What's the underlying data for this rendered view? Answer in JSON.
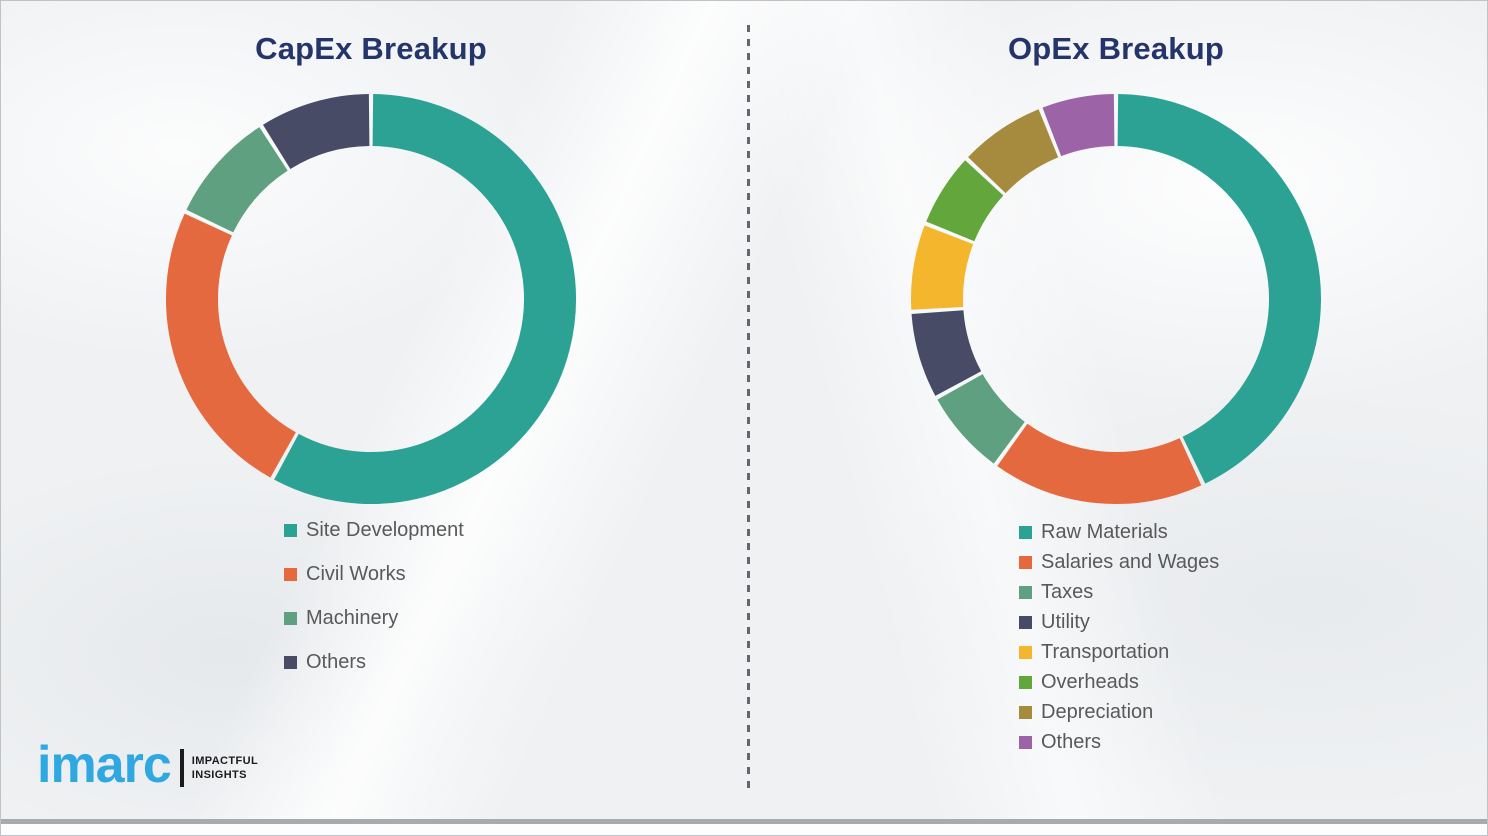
{
  "branding": {
    "logo_text": "imarc",
    "tagline_line1": "IMPACTFUL",
    "tagline_line2": "INSIGHTS",
    "logo_color": "#2FA8E1"
  },
  "colors": {
    "title_navy": "#24356B",
    "legend_text": "#595959",
    "divider_gray": "#63666c"
  },
  "chart_data": [
    {
      "type": "pie",
      "donut": true,
      "hole_radius_ratio": 0.75,
      "title": "CapEx Breakup",
      "categories": [
        "Site Development",
        "Civil Works",
        "Machinery",
        "Others"
      ],
      "values": [
        58,
        24,
        9,
        9
      ],
      "units": "percent",
      "colors": [
        "#2BA294",
        "#E5693F",
        "#5FA080",
        "#474B66"
      ],
      "legend_position": "bottom-left",
      "start_angle_deg": 0,
      "direction": "clockwise"
    },
    {
      "type": "pie",
      "donut": true,
      "hole_radius_ratio": 0.75,
      "title": "OpEx Breakup",
      "categories": [
        "Raw Materials",
        "Salaries and Wages",
        "Taxes",
        "Utility",
        "Transportation",
        "Overheads",
        "Depreciation",
        "Others"
      ],
      "values": [
        43,
        17,
        7,
        7,
        7,
        6,
        7,
        6
      ],
      "units": "percent",
      "colors": [
        "#2BA294",
        "#E5693F",
        "#5FA080",
        "#474B66",
        "#F4B62D",
        "#63A63C",
        "#A68B3E",
        "#9C63A6"
      ],
      "legend_position": "bottom-left",
      "start_angle_deg": 0,
      "direction": "clockwise"
    }
  ]
}
